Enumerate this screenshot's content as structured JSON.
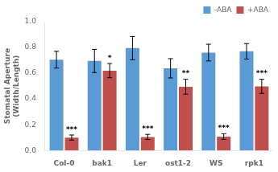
{
  "chart_data": {
    "type": "bar",
    "categories": [
      "Col-0",
      "bak1",
      "Ler",
      "ost1-2",
      "WS",
      "rpk1"
    ],
    "series": [
      {
        "name": "-ABA",
        "color": "#5B9BD5",
        "values": [
          0.705,
          0.695,
          0.795,
          0.638,
          0.76,
          0.77
        ],
        "errors": [
          0.065,
          0.09,
          0.09,
          0.075,
          0.065,
          0.06
        ]
      },
      {
        "name": "+ABA",
        "color": "#C0504D",
        "values": [
          0.1,
          0.62,
          0.105,
          0.495,
          0.108,
          0.498
        ],
        "errors": [
          0.02,
          0.055,
          0.02,
          0.058,
          0.022,
          0.055
        ]
      }
    ],
    "annotations": [
      {
        "category": "Col-0",
        "series": "+ABA",
        "text": "***"
      },
      {
        "category": "bak1",
        "series": "+ABA",
        "text": "*"
      },
      {
        "category": "Ler",
        "series": "+ABA",
        "text": "***"
      },
      {
        "category": "ost1-2",
        "series": "+ABA",
        "text": "**"
      },
      {
        "category": "WS",
        "series": "+ABA",
        "text": "***"
      },
      {
        "category": "rpk1",
        "series": "+ABA",
        "text": "***"
      }
    ],
    "ylabel": "Stomatal Aperture\n(Width/Length)",
    "ylim": [
      0,
      1.0
    ],
    "yticks": [
      {
        "value": 0,
        "label": "0.0"
      },
      0.2,
      0.4,
      0.6,
      0.8,
      {
        "value": 1.0,
        "label": "1.0"
      }
    ],
    "legend": "upper right",
    "grid": false
  }
}
